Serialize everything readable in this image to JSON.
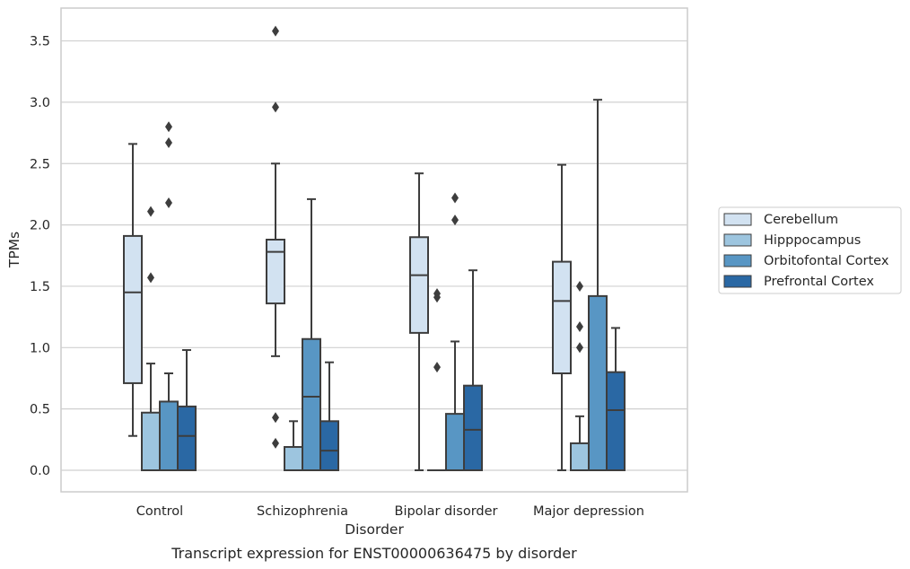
{
  "chart_data": {
    "type": "box",
    "xlabel": "Disorder",
    "ylabel": "TPMs",
    "caption": "Transcript expression for ENST00000636475 by disorder",
    "ylim": [
      -0.17,
      3.76
    ],
    "yticks": [
      0.0,
      0.5,
      1.0,
      1.5,
      2.0,
      2.5,
      3.0,
      3.5
    ],
    "ytick_labels": [
      "0.0",
      "0.5",
      "1.0",
      "1.5",
      "2.0",
      "2.5",
      "3.0",
      "3.5"
    ],
    "grid": "horizontal",
    "legend_position": "right",
    "categories": [
      "Control",
      "Schizophrenia",
      "Bipolar disorder",
      "Major depression"
    ],
    "series": [
      {
        "name": "Cerebellum",
        "color": "#d2e2f1",
        "boxes": [
          {
            "whislo": 0.28,
            "q1": 0.71,
            "med": 1.45,
            "q3": 1.91,
            "whishi": 2.66,
            "fliers": []
          },
          {
            "whislo": 0.93,
            "q1": 1.36,
            "med": 1.78,
            "q3": 1.88,
            "whishi": 2.5,
            "fliers": [
              3.58,
              2.96,
              0.43,
              0.22
            ]
          },
          {
            "whislo": 0.0,
            "q1": 1.12,
            "med": 1.59,
            "q3": 1.9,
            "whishi": 2.42,
            "fliers": []
          },
          {
            "whislo": 0.0,
            "q1": 0.79,
            "med": 1.38,
            "q3": 1.7,
            "whishi": 2.49,
            "fliers": []
          }
        ]
      },
      {
        "name": "Hipppocampus",
        "color": "#9dc5df",
        "boxes": [
          {
            "whislo": 0.0,
            "q1": 0.0,
            "med": 0.0,
            "q3": 0.47,
            "whishi": 0.87,
            "fliers": [
              2.11,
              1.57
            ]
          },
          {
            "whislo": 0.0,
            "q1": 0.0,
            "med": 0.0,
            "q3": 0.19,
            "whishi": 0.4,
            "fliers": []
          },
          {
            "whislo": 0.0,
            "q1": 0.0,
            "med": 0.0,
            "q3": 0.0,
            "whishi": 0.0,
            "fliers": [
              1.44,
              1.41,
              0.84
            ]
          },
          {
            "whislo": 0.0,
            "q1": 0.0,
            "med": 0.0,
            "q3": 0.22,
            "whishi": 0.44,
            "fliers": [
              1.5,
              1.17,
              1.0
            ]
          }
        ]
      },
      {
        "name": "Orbitofontal Cortex",
        "color": "#5896c4",
        "boxes": [
          {
            "whislo": 0.0,
            "q1": 0.0,
            "med": 0.0,
            "q3": 0.56,
            "whishi": 0.79,
            "fliers": [
              2.8,
              2.67,
              2.18
            ]
          },
          {
            "whislo": 0.0,
            "q1": 0.0,
            "med": 0.6,
            "q3": 1.07,
            "whishi": 2.21,
            "fliers": []
          },
          {
            "whislo": 0.0,
            "q1": 0.0,
            "med": 0.0,
            "q3": 0.46,
            "whishi": 1.05,
            "fliers": [
              2.22,
              2.04
            ]
          },
          {
            "whislo": 0.0,
            "q1": 0.0,
            "med": 0.0,
            "q3": 1.42,
            "whishi": 3.02,
            "fliers": []
          }
        ]
      },
      {
        "name": "Prefrontal Cortex",
        "color": "#2a68a4",
        "boxes": [
          {
            "whislo": 0.0,
            "q1": 0.0,
            "med": 0.28,
            "q3": 0.52,
            "whishi": 0.98,
            "fliers": []
          },
          {
            "whislo": 0.0,
            "q1": 0.0,
            "med": 0.16,
            "q3": 0.4,
            "whishi": 0.88,
            "fliers": []
          },
          {
            "whislo": 0.0,
            "q1": 0.0,
            "med": 0.33,
            "q3": 0.69,
            "whishi": 1.63,
            "fliers": []
          },
          {
            "whislo": 0.0,
            "q1": 0.0,
            "med": 0.49,
            "q3": 0.8,
            "whishi": 1.16,
            "fliers": []
          }
        ]
      }
    ]
  }
}
